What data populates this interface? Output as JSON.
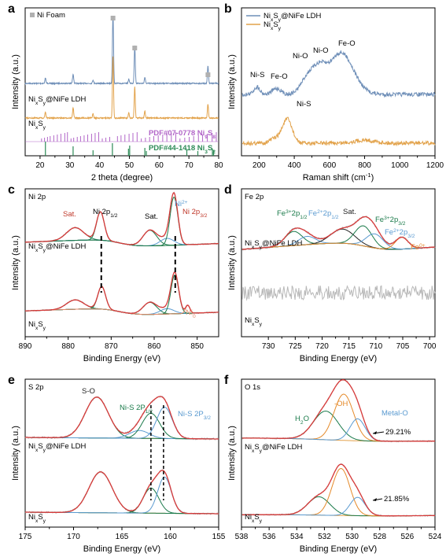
{
  "chart_data": [
    {
      "id": "a",
      "type": "line",
      "panel_label": "a",
      "xlabel": "2 theta (degree)",
      "ylabel": "Intensity (a.u.)",
      "xlim": [
        15,
        80
      ],
      "xticks": [
        20,
        30,
        40,
        50,
        60,
        70,
        80
      ],
      "series": [
        {
          "name": "Ni Foam",
          "role": "legend",
          "color": "#b0b0b0"
        },
        {
          "name": "NixSy@NiFe LDH",
          "color": "#6f8fb8",
          "peaks": [
            [
              21.8,
              0.3
            ],
            [
              31.1,
              0.55
            ],
            [
              37.8,
              0.2
            ],
            [
              44.5,
              4.2
            ],
            [
              49.8,
              0.25
            ],
            [
              51.8,
              2.2
            ],
            [
              55.2,
              0.35
            ],
            [
              76.4,
              1.0
            ]
          ]
        },
        {
          "name": "NixSy",
          "color": "#e2a24a",
          "peaks": [
            [
              21.8,
              0.35
            ],
            [
              31.1,
              0.6
            ],
            [
              37.8,
              0.25
            ],
            [
              44.5,
              3.6
            ],
            [
              49.8,
              0.3
            ],
            [
              51.8,
              1.8
            ],
            [
              55.2,
              0.4
            ],
            [
              76.4,
              0.8
            ]
          ]
        }
      ],
      "labels": [
        "NixSy@NiFe LDH",
        "NixSy"
      ],
      "reference_patterns": [
        {
          "name": "PDF#07-0778 Ni9S8",
          "color": "#b266c8",
          "lines": [
            20.5,
            21.5,
            22.5,
            23.4,
            24.6,
            25.8,
            27.0,
            28.3,
            29.2,
            30.4,
            31.3,
            32.5,
            33.6,
            34.8,
            36.0,
            37.3,
            38.5,
            39.7,
            40.9,
            42.1,
            43.4,
            46.0,
            47.2,
            48.5,
            49.9,
            51.2,
            52.6,
            54.0,
            55.4,
            56.8,
            58.2,
            59.7,
            61.2,
            62.6,
            64.1,
            65.6,
            67.0,
            68.6,
            70.1,
            71.6,
            73.2,
            74.6,
            76.2,
            77.8,
            79.2
          ]
        },
        {
          "name": "PDF#44-1418 Ni3S2",
          "color": "#2e8b57",
          "lines": [
            21.8,
            31.1,
            37.8,
            44.3,
            49.7,
            50.1,
            55.2,
            55.7,
            69.3,
            73.0,
            77.9,
            78.3
          ]
        }
      ],
      "markers": [
        44.5,
        51.8,
        76.4
      ]
    },
    {
      "id": "b",
      "type": "line",
      "panel_label": "b",
      "xlabel": "Raman shift (cm",
      "xlabel_sup": "-1",
      "xlabel_end": ")",
      "ylabel": "Intensity (a.u.)",
      "xlim": [
        100,
        1200
      ],
      "xticks": [
        200,
        400,
        600,
        800,
        1000,
        1200
      ],
      "legend": "top-left",
      "series": [
        {
          "name": "NixSy@NiFe LDH",
          "color": "#6f8fb8",
          "peaks": [
            [
              188,
              0.25,
              18
            ],
            [
              300,
              0.2,
              25
            ],
            [
              480,
              0.6,
              40
            ],
            [
              545,
              0.6,
              35
            ],
            [
              665,
              1.4,
              70
            ]
          ]
        },
        {
          "name": "NixSy",
          "color": "#e2a24a",
          "peaks": [
            [
              290,
              0.15,
              30
            ],
            [
              360,
              0.8,
              28
            ],
            [
              800,
              0.1,
              60
            ]
          ]
        }
      ],
      "annotations": [
        "Ni-S",
        "Fe-O",
        "Ni-O",
        "Ni-O",
        "Fe-O",
        "Ni-S"
      ]
    },
    {
      "id": "c",
      "type": "line",
      "panel_label": "c",
      "panel_title": "Ni 2p",
      "xlabel": "Binding Energy (eV)",
      "ylabel": "Intensity (a.u.)",
      "xlim": [
        890,
        845
      ],
      "xticks": [
        890,
        880,
        870,
        860,
        850
      ],
      "components": [
        {
          "name": "Sat.",
          "center": 878.4,
          "color": "#c0392b"
        },
        {
          "name": "Ni 2p1/2",
          "center": 872.5,
          "color": "#1a7a4a"
        },
        {
          "name": "Sat.",
          "center": 861.0,
          "color": "#1a7a4a"
        },
        {
          "name": "Ni2+",
          "center": 857.0,
          "color": "#5a9ad0"
        },
        {
          "name": "Ni 2p3/2",
          "center": 855.4,
          "color": "#c0392b"
        },
        {
          "name": "Ni0",
          "center": 852.4,
          "color": "#e58a6a"
        }
      ],
      "sample_labels": [
        "NixSy@NiFe LDH",
        "NixSy"
      ],
      "dashed_lines": [
        872.3,
        855.1
      ]
    },
    {
      "id": "d",
      "type": "line",
      "panel_label": "d",
      "panel_title": "Fe 2p",
      "xlabel": "Binding Energy (eV)",
      "ylabel": "Intensity (a.u.)",
      "xlim": [
        735,
        699
      ],
      "xticks": [
        730,
        725,
        720,
        715,
        710,
        705,
        700
      ],
      "components": [
        {
          "name": "Fe3+2p1/2",
          "center": 725.3,
          "color": "#1a7a4a"
        },
        {
          "name": "Fe2+2p1/2",
          "center": 722.8,
          "color": "#5a9ad0"
        },
        {
          "name": "Sat.",
          "center": 716.2,
          "color": "#222222"
        },
        {
          "name": "Fe3+2p3/2",
          "center": 712.3,
          "color": "#1a7a4a"
        },
        {
          "name": "Fe2+2p3/2",
          "center": 710.2,
          "color": "#5a9ad0"
        },
        {
          "name": "Fe0+",
          "center": 705.2,
          "color": "#e58a2a"
        }
      ],
      "sample_labels": [
        "NixSy@NiFe LDH",
        "NixSy"
      ]
    },
    {
      "id": "e",
      "type": "line",
      "panel_label": "e",
      "panel_title": "S 2p",
      "xlabel": "Binding Energy (eV)",
      "ylabel": "Intensity (a.u.)",
      "xlim": [
        175,
        155
      ],
      "xticks": [
        175,
        170,
        165,
        160,
        155
      ],
      "components": [
        {
          "name": "S-O",
          "center": 167.6,
          "color": "#222222"
        },
        {
          "name": "Ni-S 2P1/2",
          "center": 162.0,
          "color": "#1a7a4a"
        },
        {
          "name": "Ni-S 2P3/2",
          "center": 160.6,
          "color": "#5a9ad0"
        }
      ],
      "sample_labels": [
        "NixSy@NiFe LDH",
        "NixSy"
      ],
      "dashed_lines": [
        162.0,
        160.7
      ]
    },
    {
      "id": "f",
      "type": "line",
      "panel_label": "f",
      "panel_title": "O 1s",
      "xlabel": "Binding Energy (eV)",
      "ylabel": "Intensity (a.u.)",
      "xlim": [
        538,
        524
      ],
      "xticks": [
        538,
        536,
        534,
        532,
        530,
        528,
        526,
        524
      ],
      "components": [
        {
          "name": "H2O",
          "center": 531.9,
          "color": "#1a7a4a"
        },
        {
          "name": "-OH",
          "center": 530.6,
          "color": "#e58a2a"
        },
        {
          "name": "Metal-O",
          "center": 529.6,
          "color": "#5a9ad0"
        }
      ],
      "sample_labels": [
        "NixSy@NiFe LDH",
        "NixSy"
      ],
      "percentages": [
        "29.21%",
        "21.85%"
      ]
    }
  ]
}
